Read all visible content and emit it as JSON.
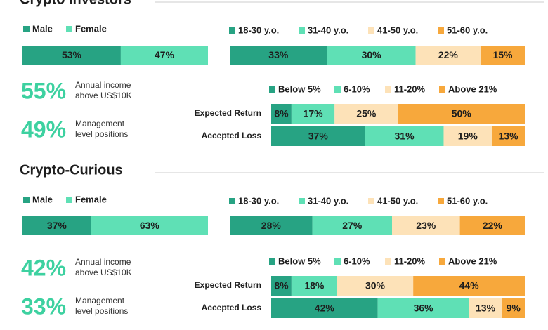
{
  "sections": [
    {
      "title": "Crypto Investors",
      "stats": [
        {
          "figure": "55%",
          "text": [
            "Annual income",
            "above US$10K"
          ]
        },
        {
          "figure": "49%",
          "text": [
            "Management",
            "level positions"
          ]
        }
      ]
    },
    {
      "title": "Crypto-Curious",
      "stats": [
        {
          "figure": "42%",
          "text": [
            "Annual income",
            "above US$10K"
          ]
        },
        {
          "figure": "33%",
          "text": [
            "Management",
            "level positions"
          ]
        }
      ]
    }
  ],
  "chart_data": [
    {
      "type": "stacked-bar",
      "categories": [
        null
      ],
      "xlim": [
        0,
        100
      ],
      "series": [
        {
          "name": "Male",
          "color": "#27a383",
          "values": [
            53
          ],
          "value_labels": [
            "53%"
          ]
        },
        {
          "name": "Female",
          "color": "#5fe0b5",
          "values": [
            47
          ],
          "value_labels": [
            "47%"
          ]
        }
      ]
    },
    {
      "type": "stacked-bar",
      "categories": [
        null
      ],
      "xlim": [
        0,
        100
      ],
      "series": [
        {
          "name": "18-30 y.o.",
          "color": "#27a383",
          "values": [
            33
          ],
          "value_labels": [
            "33%"
          ]
        },
        {
          "name": "31-40 y.o.",
          "color": "#5fe0b5",
          "values": [
            30
          ],
          "value_labels": [
            "30%"
          ]
        },
        {
          "name": "41-50 y.o.",
          "color": "#fde2b8",
          "values": [
            22
          ],
          "value_labels": [
            "22%"
          ]
        },
        {
          "name": "51-60 y.o.",
          "color": "#f7a83c",
          "values": [
            15
          ],
          "value_labels": [
            "15%"
          ]
        }
      ]
    },
    {
      "type": "stacked-bar",
      "categories": [
        "Expected Return",
        "Accepted Loss"
      ],
      "xlim": [
        0,
        100
      ],
      "series": [
        {
          "name": "Below 5%",
          "color": "#27a383",
          "values": [
            8,
            37
          ],
          "value_labels": [
            "8%",
            "37%"
          ]
        },
        {
          "name": "6-10%",
          "color": "#5fe0b5",
          "values": [
            17,
            31
          ],
          "value_labels": [
            "17%",
            "31%"
          ]
        },
        {
          "name": "11-20%",
          "color": "#fde2b8",
          "values": [
            25,
            19
          ],
          "value_labels": [
            "25%",
            "19%"
          ]
        },
        {
          "name": "Above 21%",
          "color": "#f7a83c",
          "values": [
            50,
            13
          ],
          "value_labels": [
            "50%",
            "13%"
          ]
        }
      ]
    },
    {
      "type": "stacked-bar",
      "categories": [
        null
      ],
      "xlim": [
        0,
        100
      ],
      "series": [
        {
          "name": "Male",
          "color": "#27a383",
          "values": [
            37
          ],
          "value_labels": [
            "37%"
          ]
        },
        {
          "name": "Female",
          "color": "#5fe0b5",
          "values": [
            63
          ],
          "value_labels": [
            "63%"
          ]
        }
      ]
    },
    {
      "type": "stacked-bar",
      "categories": [
        null
      ],
      "xlim": [
        0,
        100
      ],
      "series": [
        {
          "name": "18-30 y.o.",
          "color": "#27a383",
          "values": [
            28
          ],
          "value_labels": [
            "28%"
          ]
        },
        {
          "name": "31-40 y.o.",
          "color": "#5fe0b5",
          "values": [
            27
          ],
          "value_labels": [
            "27%"
          ]
        },
        {
          "name": "41-50 y.o.",
          "color": "#fde2b8",
          "values": [
            23
          ],
          "value_labels": [
            "23%"
          ]
        },
        {
          "name": "51-60 y.o.",
          "color": "#f7a83c",
          "values": [
            22
          ],
          "value_labels": [
            "22%"
          ]
        }
      ]
    },
    {
      "type": "stacked-bar",
      "categories": [
        "Expected Return",
        "Accepted Loss"
      ],
      "xlim": [
        0,
        100
      ],
      "series": [
        {
          "name": "Below 5%",
          "color": "#27a383",
          "values": [
            8,
            42
          ],
          "value_labels": [
            "8%",
            "42%"
          ]
        },
        {
          "name": "6-10%",
          "color": "#5fe0b5",
          "values": [
            18,
            36
          ],
          "value_labels": [
            "18%",
            "36%"
          ]
        },
        {
          "name": "11-20%",
          "color": "#fde2b8",
          "values": [
            30,
            13
          ],
          "value_labels": [
            "30%",
            "13%"
          ]
        },
        {
          "name": "Above 21%",
          "color": "#f7a83c",
          "values": [
            44,
            9
          ],
          "value_labels": [
            "44%",
            "9%"
          ]
        }
      ]
    }
  ]
}
